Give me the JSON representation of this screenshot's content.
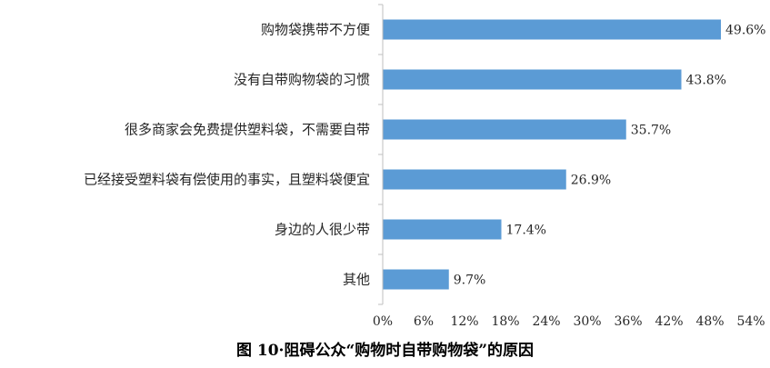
{
  "caption": "图 10·阻碍公众“购物时自带购物袋”的原因",
  "colors": {
    "bar": "#5b9bd5",
    "axis": "#bfbfbf",
    "text": "#262626"
  },
  "chart_data": {
    "type": "bar",
    "orientation": "horizontal",
    "categories": [
      "购物袋携带不方便",
      "没有自带购物袋的习惯",
      "很多商家会免费提供塑料袋，不需要自带",
      "已经接受塑料袋有偿使用的事实，且塑料袋便宜",
      "身边的人很少带",
      "其他"
    ],
    "values": [
      49.6,
      43.8,
      35.7,
      26.9,
      17.4,
      9.7
    ],
    "value_labels": [
      "49.6%",
      "43.8%",
      "35.7%",
      "26.9%",
      "17.4%",
      "9.7%"
    ],
    "xlim": [
      0,
      54
    ],
    "x_ticks": [
      "0%",
      "6%",
      "12%",
      "18%",
      "24%",
      "30%",
      "36%",
      "42%",
      "48%",
      "54%"
    ],
    "grid": false,
    "legend": "none"
  }
}
